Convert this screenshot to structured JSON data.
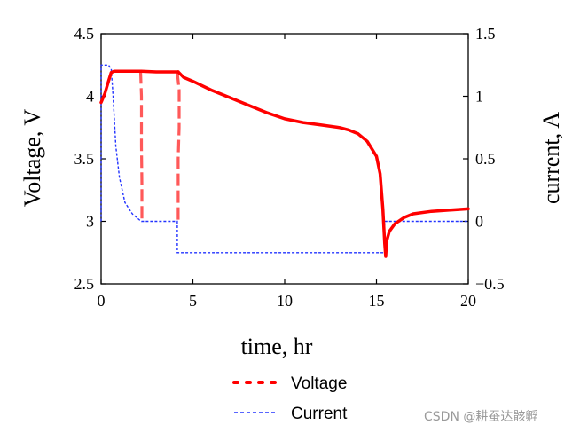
{
  "chart_data": {
    "type": "line",
    "xlabel": "time, hr",
    "ylabel": "Voltage, V",
    "y2label": "current, A",
    "xlim": [
      0,
      20
    ],
    "ylim": [
      2.5,
      4.5
    ],
    "y2lim": [
      -0.5,
      1.5
    ],
    "xticks": [
      "0",
      "5",
      "10",
      "15",
      "20"
    ],
    "yticks": [
      "2.5",
      "3",
      "3.5",
      "4",
      "4.5"
    ],
    "y2ticks": [
      "−0.5",
      "0",
      "0.5",
      "1",
      "1.5"
    ],
    "grid": false,
    "legend_position": "bottom",
    "series": [
      {
        "name": "Voltage",
        "axis": "left",
        "color": "#ff0000",
        "segments": [
          {
            "style": "solid",
            "points": [
              [
                0,
                3.95
              ],
              [
                0.2,
                4.02
              ],
              [
                0.4,
                4.12
              ],
              [
                0.55,
                4.19
              ],
              [
                0.7,
                4.2
              ],
              [
                1.5,
                4.2
              ],
              [
                2.2,
                4.2
              ],
              [
                3.0,
                4.195
              ],
              [
                4.2,
                4.195
              ]
            ]
          },
          {
            "style": "dashed",
            "points": [
              [
                2.15,
                4.2
              ],
              [
                2.2,
                4.0
              ],
              [
                2.2,
                3.8
              ],
              [
                2.2,
                3.6
              ],
              [
                2.22,
                3.3
              ],
              [
                2.22,
                3.0
              ]
            ]
          },
          {
            "style": "dashed",
            "points": [
              [
                4.15,
                4.19
              ],
              [
                4.25,
                4.05
              ],
              [
                4.25,
                3.75
              ],
              [
                4.2,
                3.5
              ],
              [
                4.2,
                3.3
              ],
              [
                4.2,
                3.0
              ]
            ]
          },
          {
            "style": "solid",
            "points": [
              [
                4.2,
                4.195
              ],
              [
                4.5,
                4.15
              ],
              [
                5,
                4.12
              ],
              [
                6,
                4.05
              ],
              [
                7,
                3.99
              ],
              [
                8,
                3.93
              ],
              [
                9,
                3.87
              ],
              [
                10,
                3.82
              ],
              [
                11,
                3.79
              ],
              [
                12,
                3.77
              ],
              [
                13,
                3.75
              ],
              [
                13.5,
                3.73
              ],
              [
                14,
                3.7
              ],
              [
                14.5,
                3.64
              ],
              [
                15,
                3.52
              ],
              [
                15.2,
                3.38
              ],
              [
                15.35,
                3.1
              ],
              [
                15.45,
                2.82
              ],
              [
                15.5,
                2.72
              ],
              [
                15.55,
                2.84
              ],
              [
                15.7,
                2.92
              ],
              [
                16,
                2.98
              ],
              [
                16.5,
                3.03
              ],
              [
                17,
                3.06
              ],
              [
                18,
                3.08
              ],
              [
                19,
                3.09
              ],
              [
                20,
                3.1
              ]
            ]
          }
        ]
      },
      {
        "name": "Current",
        "axis": "right",
        "color": "#2233ff",
        "points": [
          [
            0,
            0
          ],
          [
            0,
            1.25
          ],
          [
            0.4,
            1.25
          ],
          [
            0.55,
            1.22
          ],
          [
            0.65,
            1.0
          ],
          [
            0.8,
            0.6
          ],
          [
            1.0,
            0.35
          ],
          [
            1.3,
            0.15
          ],
          [
            1.7,
            0.06
          ],
          [
            2.1,
            0.01
          ],
          [
            2.2,
            0
          ],
          [
            4.15,
            0
          ],
          [
            4.15,
            -0.25
          ],
          [
            15.45,
            -0.25
          ],
          [
            15.45,
            0
          ],
          [
            20,
            0
          ]
        ]
      }
    ]
  },
  "watermark": "CSDN @耕蚕达骸孵"
}
